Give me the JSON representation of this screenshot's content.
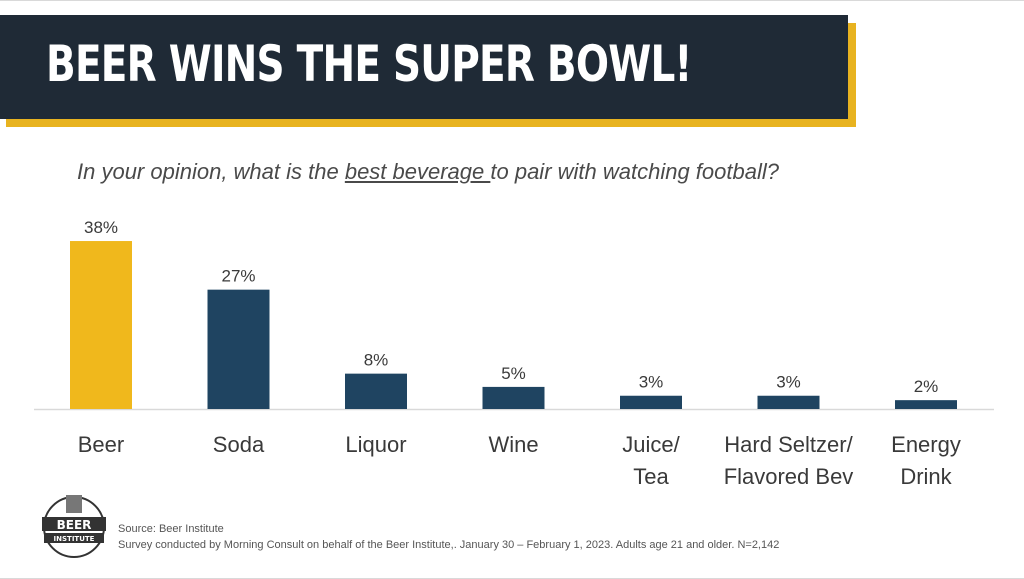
{
  "header": {
    "title": "BEER WINS THE SUPER BOWL!"
  },
  "question": {
    "before": "In your opinion, what is the ",
    "emphasis": "best beverage ",
    "after": "to pair with watching football?"
  },
  "chart_data": {
    "type": "bar",
    "categories": [
      [
        "Beer"
      ],
      [
        "Soda"
      ],
      [
        "Liquor"
      ],
      [
        "Wine"
      ],
      [
        "Juice/",
        "Tea"
      ],
      [
        "Hard Seltzer/",
        "Flavored Bev"
      ],
      [
        "Energy",
        "Drink"
      ]
    ],
    "values": [
      38,
      27,
      8,
      5,
      3,
      3,
      2
    ],
    "value_labels": [
      "38%",
      "27%",
      "8%",
      "5%",
      "3%",
      "3%",
      "2%"
    ],
    "unit": "%",
    "highlight_index": 0,
    "colors": {
      "highlight": "#f0b81c",
      "default": "#1f4461",
      "axis": "#d9d9d9",
      "label": "#3a3a3a"
    },
    "grid": false,
    "legend": "none"
  },
  "footer": {
    "logo_text_top": "BEER",
    "logo_text_bottom": "INSTITUTE",
    "source": "Source: Beer Institute",
    "note": "Survey conducted by Morning Consult on behalf of the Beer Institute,. January 30 – February 1, 2023. Adults age 21 and older. N=2,142"
  },
  "colors": {
    "banner": "#1f2a36",
    "banner_accent": "#e8b320"
  }
}
